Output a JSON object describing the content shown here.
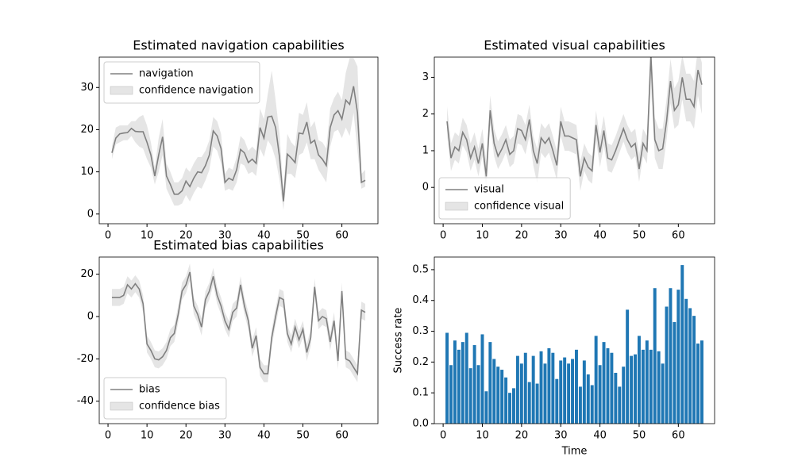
{
  "chart_data": [
    {
      "type": "line",
      "title": "Estimated navigation capabilities",
      "legend": "upper left",
      "x": [
        1,
        2,
        3,
        4,
        5,
        6,
        7,
        8,
        9,
        10,
        11,
        12,
        13,
        14,
        15,
        16,
        17,
        18,
        19,
        20,
        21,
        22,
        23,
        24,
        25,
        26,
        27,
        28,
        29,
        30,
        31,
        32,
        33,
        34,
        35,
        36,
        37,
        38,
        39,
        40,
        41,
        42,
        43,
        44,
        45,
        46,
        47,
        48,
        49,
        50,
        51,
        52,
        53,
        54,
        55,
        56,
        57,
        58,
        59,
        60,
        61,
        62,
        63,
        64,
        65,
        66
      ],
      "series": [
        {
          "name": "navigation",
          "color": "#808080",
          "values": [
            14.5,
            18,
            19,
            19.2,
            19.3,
            20.3,
            19.6,
            19.5,
            19.5,
            17,
            14,
            9,
            14,
            18.3,
            9,
            7,
            4.7,
            4.7,
            5.5,
            7.8,
            6.5,
            8.5,
            10,
            9.8,
            11.5,
            14,
            19.7,
            18.5,
            15.5,
            7.5,
            8.5,
            8,
            10.5,
            15.3,
            14.5,
            12.2,
            13,
            12,
            20.5,
            18,
            23,
            23.2,
            20.5,
            13.5,
            3,
            14.2,
            13.3,
            12.2,
            19.2,
            19,
            21.8,
            16.8,
            17.5,
            14,
            13,
            11.5,
            20.5,
            23.5,
            24.5,
            22.5,
            27,
            26,
            30.3,
            24,
            7.5,
            8
          ]
        }
      ],
      "band": {
        "name": "confidence navigation",
        "color": "#d3d3d3",
        "lower": [
          13,
          16.5,
          17,
          17.5,
          17.5,
          18.5,
          17,
          16,
          15.5,
          13,
          11,
          7,
          10,
          14,
          6,
          4,
          2,
          2,
          2.5,
          4.5,
          3,
          5,
          6.5,
          6,
          8,
          10.5,
          16,
          15,
          12,
          5.5,
          6,
          5.5,
          7.5,
          12,
          11.5,
          9.5,
          10,
          9,
          15.5,
          13.5,
          17.5,
          16,
          13,
          8,
          1,
          9.5,
          9.5,
          8.5,
          14,
          14.5,
          17,
          13,
          13,
          10.5,
          9,
          7.5,
          16,
          19.5,
          20,
          18,
          20.5,
          18.5,
          24,
          15,
          6,
          6.5
        ],
        "upper": [
          16,
          20.5,
          21,
          21,
          21,
          22,
          22,
          23,
          23.5,
          21,
          17,
          11,
          18,
          22.5,
          12,
          10,
          7.5,
          7.5,
          8.5,
          11,
          10,
          12,
          13.5,
          13.5,
          15,
          17.5,
          23,
          22,
          19,
          9.5,
          11,
          10.5,
          13.5,
          18.5,
          17.5,
          15,
          16,
          15,
          25,
          22.5,
          28.5,
          34,
          27,
          19,
          5.5,
          19,
          17,
          16,
          24,
          23.5,
          26.5,
          20.5,
          22,
          17.5,
          17,
          15.5,
          25,
          27.5,
          29,
          27,
          33.5,
          37,
          37,
          35,
          9.5,
          10.5
        ]
      },
      "xlim": [
        -2.25,
        69.25
      ],
      "xticks": [
        0,
        10,
        20,
        30,
        40,
        50,
        60
      ],
      "ylim": [
        -2.3,
        37.2
      ],
      "yticks": [
        0,
        10,
        20,
        30
      ]
    },
    {
      "type": "line",
      "title": "Estimated visual capabilities",
      "legend": "lower left",
      "x": [
        1,
        2,
        3,
        4,
        5,
        6,
        7,
        8,
        9,
        10,
        11,
        12,
        13,
        14,
        15,
        16,
        17,
        18,
        19,
        20,
        21,
        22,
        23,
        24,
        25,
        26,
        27,
        28,
        29,
        30,
        31,
        32,
        33,
        34,
        35,
        36,
        37,
        38,
        39,
        40,
        41,
        42,
        43,
        44,
        45,
        46,
        47,
        48,
        49,
        50,
        51,
        52,
        53,
        54,
        55,
        56,
        57,
        58,
        59,
        60,
        61,
        62,
        63,
        64,
        65,
        66
      ],
      "series": [
        {
          "name": "visual",
          "color": "#808080",
          "values": [
            1.8,
            0.8,
            1.1,
            1.0,
            1.5,
            1.3,
            0.8,
            1.1,
            0.65,
            1.2,
            0.3,
            2.1,
            1.2,
            0.85,
            1.05,
            1.3,
            0.9,
            1.0,
            1.6,
            1.55,
            1.3,
            1.85,
            1.0,
            0.65,
            1.35,
            1.2,
            1.35,
            1.0,
            0.6,
            1.8,
            1.4,
            1.4,
            1.35,
            1.3,
            0.3,
            0.8,
            0.55,
            0.45,
            1.7,
            0.95,
            1.55,
            0.8,
            0.75,
            1.0,
            1.3,
            1.6,
            1.3,
            1.1,
            1.2,
            0.5,
            1.2,
            1.0,
            3.6,
            1.3,
            1.0,
            1.05,
            1.8,
            2.9,
            2.1,
            2.25,
            3.0,
            2.4,
            2.4,
            2.2,
            3.2,
            2.8
          ]
        }
      ],
      "band": {
        "name": "confidence visual",
        "color": "#d3d3d3",
        "lower": [
          1.45,
          0.45,
          0.75,
          0.65,
          1.15,
          0.95,
          0.45,
          0.75,
          0.3,
          0.85,
          -0.05,
          1.7,
          0.85,
          0.5,
          0.7,
          0.95,
          0.55,
          0.65,
          1.2,
          1.15,
          0.9,
          1.4,
          0.6,
          0.1,
          0.95,
          0.8,
          0.95,
          0.6,
          0.2,
          1.4,
          1.0,
          1.0,
          0.95,
          0.9,
          -0.1,
          0.45,
          0.2,
          0.1,
          1.3,
          0.55,
          1.15,
          0.45,
          0.4,
          0.65,
          0.95,
          1.25,
          0.95,
          0.75,
          0.85,
          0.15,
          0.85,
          0.65,
          2.8,
          0.8,
          0.5,
          0.5,
          1.3,
          2.3,
          1.6,
          1.7,
          2.4,
          1.8,
          1.8,
          1.6,
          2.5,
          2.0
        ],
        "upper": [
          2.2,
          1.2,
          1.5,
          1.4,
          1.9,
          1.7,
          1.2,
          1.5,
          1.05,
          1.6,
          0.7,
          2.5,
          1.6,
          1.25,
          1.45,
          1.7,
          1.3,
          1.4,
          2.0,
          1.95,
          1.7,
          2.25,
          1.4,
          1.05,
          1.75,
          1.6,
          1.75,
          1.4,
          1.0,
          2.2,
          1.8,
          1.8,
          1.75,
          1.7,
          0.7,
          1.2,
          0.95,
          0.85,
          2.1,
          1.35,
          1.95,
          1.2,
          1.15,
          1.4,
          1.7,
          2.0,
          1.7,
          1.5,
          1.6,
          0.9,
          1.6,
          1.4,
          4.0,
          1.9,
          1.6,
          1.6,
          2.4,
          3.5,
          2.7,
          2.9,
          3.6,
          3.1,
          3.1,
          2.9,
          3.8,
          3.4
        ]
      },
      "xlim": [
        -2.25,
        69.25
      ],
      "xticks": [
        0,
        10,
        20,
        30,
        40,
        50,
        60
      ],
      "ylim": [
        -0.99,
        3.55
      ],
      "yticks": [
        0,
        1,
        2,
        3
      ]
    },
    {
      "type": "line",
      "title": "Estimated bias capabilities",
      "legend": "lower left",
      "x": [
        1,
        2,
        3,
        4,
        5,
        6,
        7,
        8,
        9,
        10,
        11,
        12,
        13,
        14,
        15,
        16,
        17,
        18,
        19,
        20,
        21,
        22,
        23,
        24,
        25,
        26,
        27,
        28,
        29,
        30,
        31,
        32,
        33,
        34,
        35,
        36,
        37,
        38,
        39,
        40,
        41,
        42,
        43,
        44,
        45,
        46,
        47,
        48,
        49,
        50,
        51,
        52,
        53,
        54,
        55,
        56,
        57,
        58,
        59,
        60,
        61,
        62,
        63,
        64,
        65,
        66
      ],
      "series": [
        {
          "name": "bias",
          "color": "#808080",
          "values": [
            9,
            9,
            9,
            10,
            15,
            13,
            15.5,
            13,
            6,
            -13,
            -16,
            -20,
            -20.5,
            -19,
            -16,
            -10,
            -8,
            1,
            12,
            15,
            21,
            5,
            1,
            -5,
            8,
            12,
            19,
            10,
            5,
            -2,
            -6,
            2,
            4,
            15,
            5,
            -2,
            -15,
            -9,
            -24,
            -27,
            -27,
            -10,
            0,
            9,
            8,
            -8,
            -13,
            -5,
            -11,
            -6,
            -17,
            -10,
            14,
            -2,
            0,
            -1,
            -12,
            -2,
            -21,
            12,
            -20,
            -21,
            -24,
            -27,
            3,
            2
          ]
        }
      ],
      "band": {
        "name": "confidence bias",
        "color": "#d3d3d3",
        "lower": [
          5,
          5,
          5,
          6,
          11,
          9,
          11.5,
          9,
          2,
          -17,
          -20,
          -24,
          -24.5,
          -23,
          -20,
          -14,
          -12,
          -3,
          8,
          11,
          17,
          1,
          -3,
          -9,
          4,
          8,
          15,
          6,
          1,
          -6,
          -10,
          -2,
          0,
          11,
          1,
          -6,
          -19,
          -13,
          -28,
          -31,
          -31,
          -14,
          -4,
          5,
          4,
          -12,
          -17,
          -9,
          -15,
          -10,
          -21,
          -14,
          10,
          -6,
          -4,
          -5,
          -16,
          -6,
          -25,
          8,
          -24,
          -25,
          -28,
          -31,
          -1,
          -2
        ],
        "upper": [
          13,
          13,
          13,
          14,
          19,
          17,
          19.5,
          17,
          10,
          -9,
          -12,
          -16,
          -16.5,
          -15,
          -12,
          -6,
          -4,
          5,
          16,
          19,
          25,
          9,
          5,
          -1,
          12,
          16,
          23,
          14,
          9,
          2,
          -2,
          6,
          8,
          19,
          9,
          2,
          -11,
          -5,
          -20,
          -23,
          -23,
          -6,
          4,
          13,
          12,
          -4,
          -9,
          -1,
          -7,
          -2,
          -13,
          -6,
          18,
          2,
          4,
          3,
          -8,
          2,
          -17,
          16,
          -16,
          -17,
          -20,
          -23,
          7,
          6
        ]
      },
      "xlim": [
        -2.25,
        69.25
      ],
      "xticks": [
        0,
        10,
        20,
        30,
        40,
        50,
        60
      ],
      "ylim": [
        -50.6,
        28.1
      ],
      "yticks": [
        -40,
        -20,
        0,
        20
      ]
    },
    {
      "type": "bar",
      "xlabel": "Time",
      "ylabel": "Success rate",
      "color": "#1f77b4",
      "x": [
        1,
        2,
        3,
        4,
        5,
        6,
        7,
        8,
        9,
        10,
        11,
        12,
        13,
        14,
        15,
        16,
        17,
        18,
        19,
        20,
        21,
        22,
        23,
        24,
        25,
        26,
        27,
        28,
        29,
        30,
        31,
        32,
        33,
        34,
        35,
        36,
        37,
        38,
        39,
        40,
        41,
        42,
        43,
        44,
        45,
        46,
        47,
        48,
        49,
        50,
        51,
        52,
        53,
        54,
        55,
        56,
        57,
        58,
        59,
        60,
        61,
        62,
        63,
        64,
        65,
        66
      ],
      "values": [
        0.295,
        0.19,
        0.27,
        0.24,
        0.265,
        0.295,
        0.18,
        0.255,
        0.19,
        0.29,
        0.105,
        0.265,
        0.21,
        0.185,
        0.175,
        0.15,
        0.1,
        0.115,
        0.22,
        0.195,
        0.23,
        0.135,
        0.22,
        0.13,
        0.235,
        0.195,
        0.245,
        0.23,
        0.145,
        0.205,
        0.215,
        0.195,
        0.21,
        0.24,
        0.12,
        0.205,
        0.16,
        0.125,
        0.285,
        0.19,
        0.265,
        0.245,
        0.23,
        0.165,
        0.12,
        0.185,
        0.37,
        0.22,
        0.225,
        0.285,
        0.24,
        0.27,
        0.24,
        0.44,
        0.235,
        0.195,
        0.38,
        0.44,
        0.33,
        0.435,
        0.515,
        0.405,
        0.375,
        0.35,
        0.26,
        0.27
      ],
      "xlim": [
        -2.25,
        69.25
      ],
      "xticks": [
        0,
        10,
        20,
        30,
        40,
        50,
        60
      ],
      "ylim": [
        0,
        0.541
      ],
      "yticks": [
        {
          "value": 0,
          "label": "0.0"
        },
        0.1,
        0.2,
        0.3,
        0.4,
        0.5
      ]
    }
  ]
}
